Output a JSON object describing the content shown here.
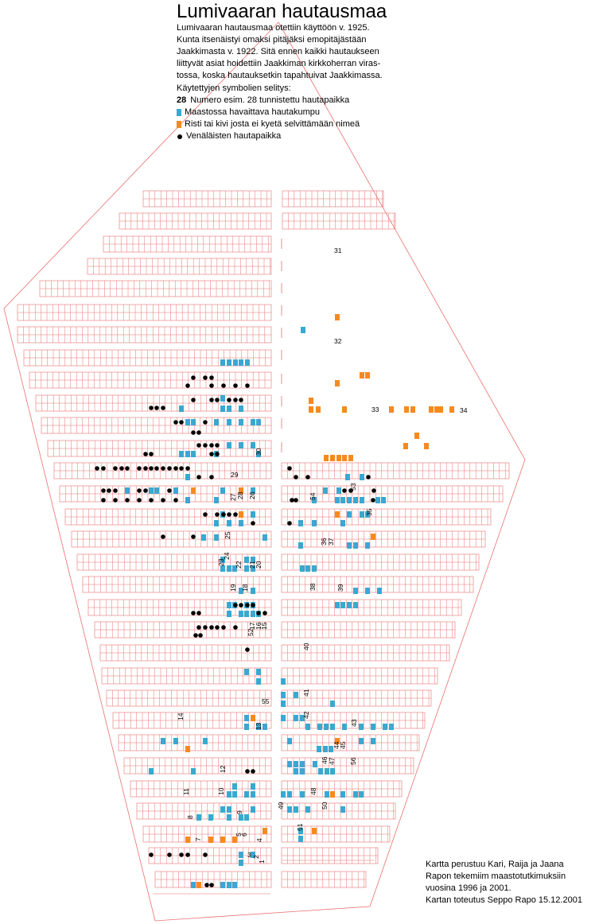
{
  "title": "Lumivaaran hautausmaa",
  "intro_lines": [
    "Lumivaaran hautausmaa otettiin käyttöön v. 1925.",
    "Kunta itsenäistyi omaksi pitäjäksi emopitäjästään",
    "Jaakkimasta v. 1922. Sitä ennen kaikki hautaukseen",
    "liittyvät asiat hoidettiin Jaakkiman kirkkoherran viras-",
    "tossa, koska hautauksetkin tapahtuivat Jaakkimassa."
  ],
  "legend": {
    "heading": "Käytettyjen symbolien selitys:",
    "number_sample": "28",
    "number_text": "Numero esim. 28 tunnistettu hautapaikka",
    "mound_text": "Maastossa havaittava hautakumpu",
    "cross_text": "Risti tai kivi josta ei kyetä selvittämään nimeä",
    "russian_text": "Venäläisten hautapaikka"
  },
  "colors": {
    "grid": "#e8706e",
    "mound": "#3aa8d0",
    "cross": "#f58a1f",
    "russian": "#000000"
  },
  "credit_lines": [
    "Kartta perustuu Kari, Raija ja Jaana",
    "Rapon tekemiim maastotutkimuksiin",
    "vuosina 1996 ja 2001.",
    "Kartan toteutus Seppo Rapo 15.12.2001"
  ],
  "grave_numbers": [
    "1",
    "2",
    "3",
    "4",
    "5",
    "6",
    "7",
    "8",
    "9",
    "10",
    "11",
    "12",
    "13",
    "14",
    "15",
    "16",
    "17",
    "18",
    "19",
    "20",
    "21",
    "22",
    "23",
    "24",
    "25",
    "26",
    "27",
    "28",
    "29",
    "30",
    "31",
    "32",
    "33",
    "34",
    "35",
    "36",
    "37",
    "38",
    "39",
    "40",
    "41",
    "42",
    "43",
    "44",
    "45",
    "46",
    "47",
    "48",
    "49",
    "50",
    "51",
    "52",
    "53",
    "54",
    "55",
    "56"
  ]
}
